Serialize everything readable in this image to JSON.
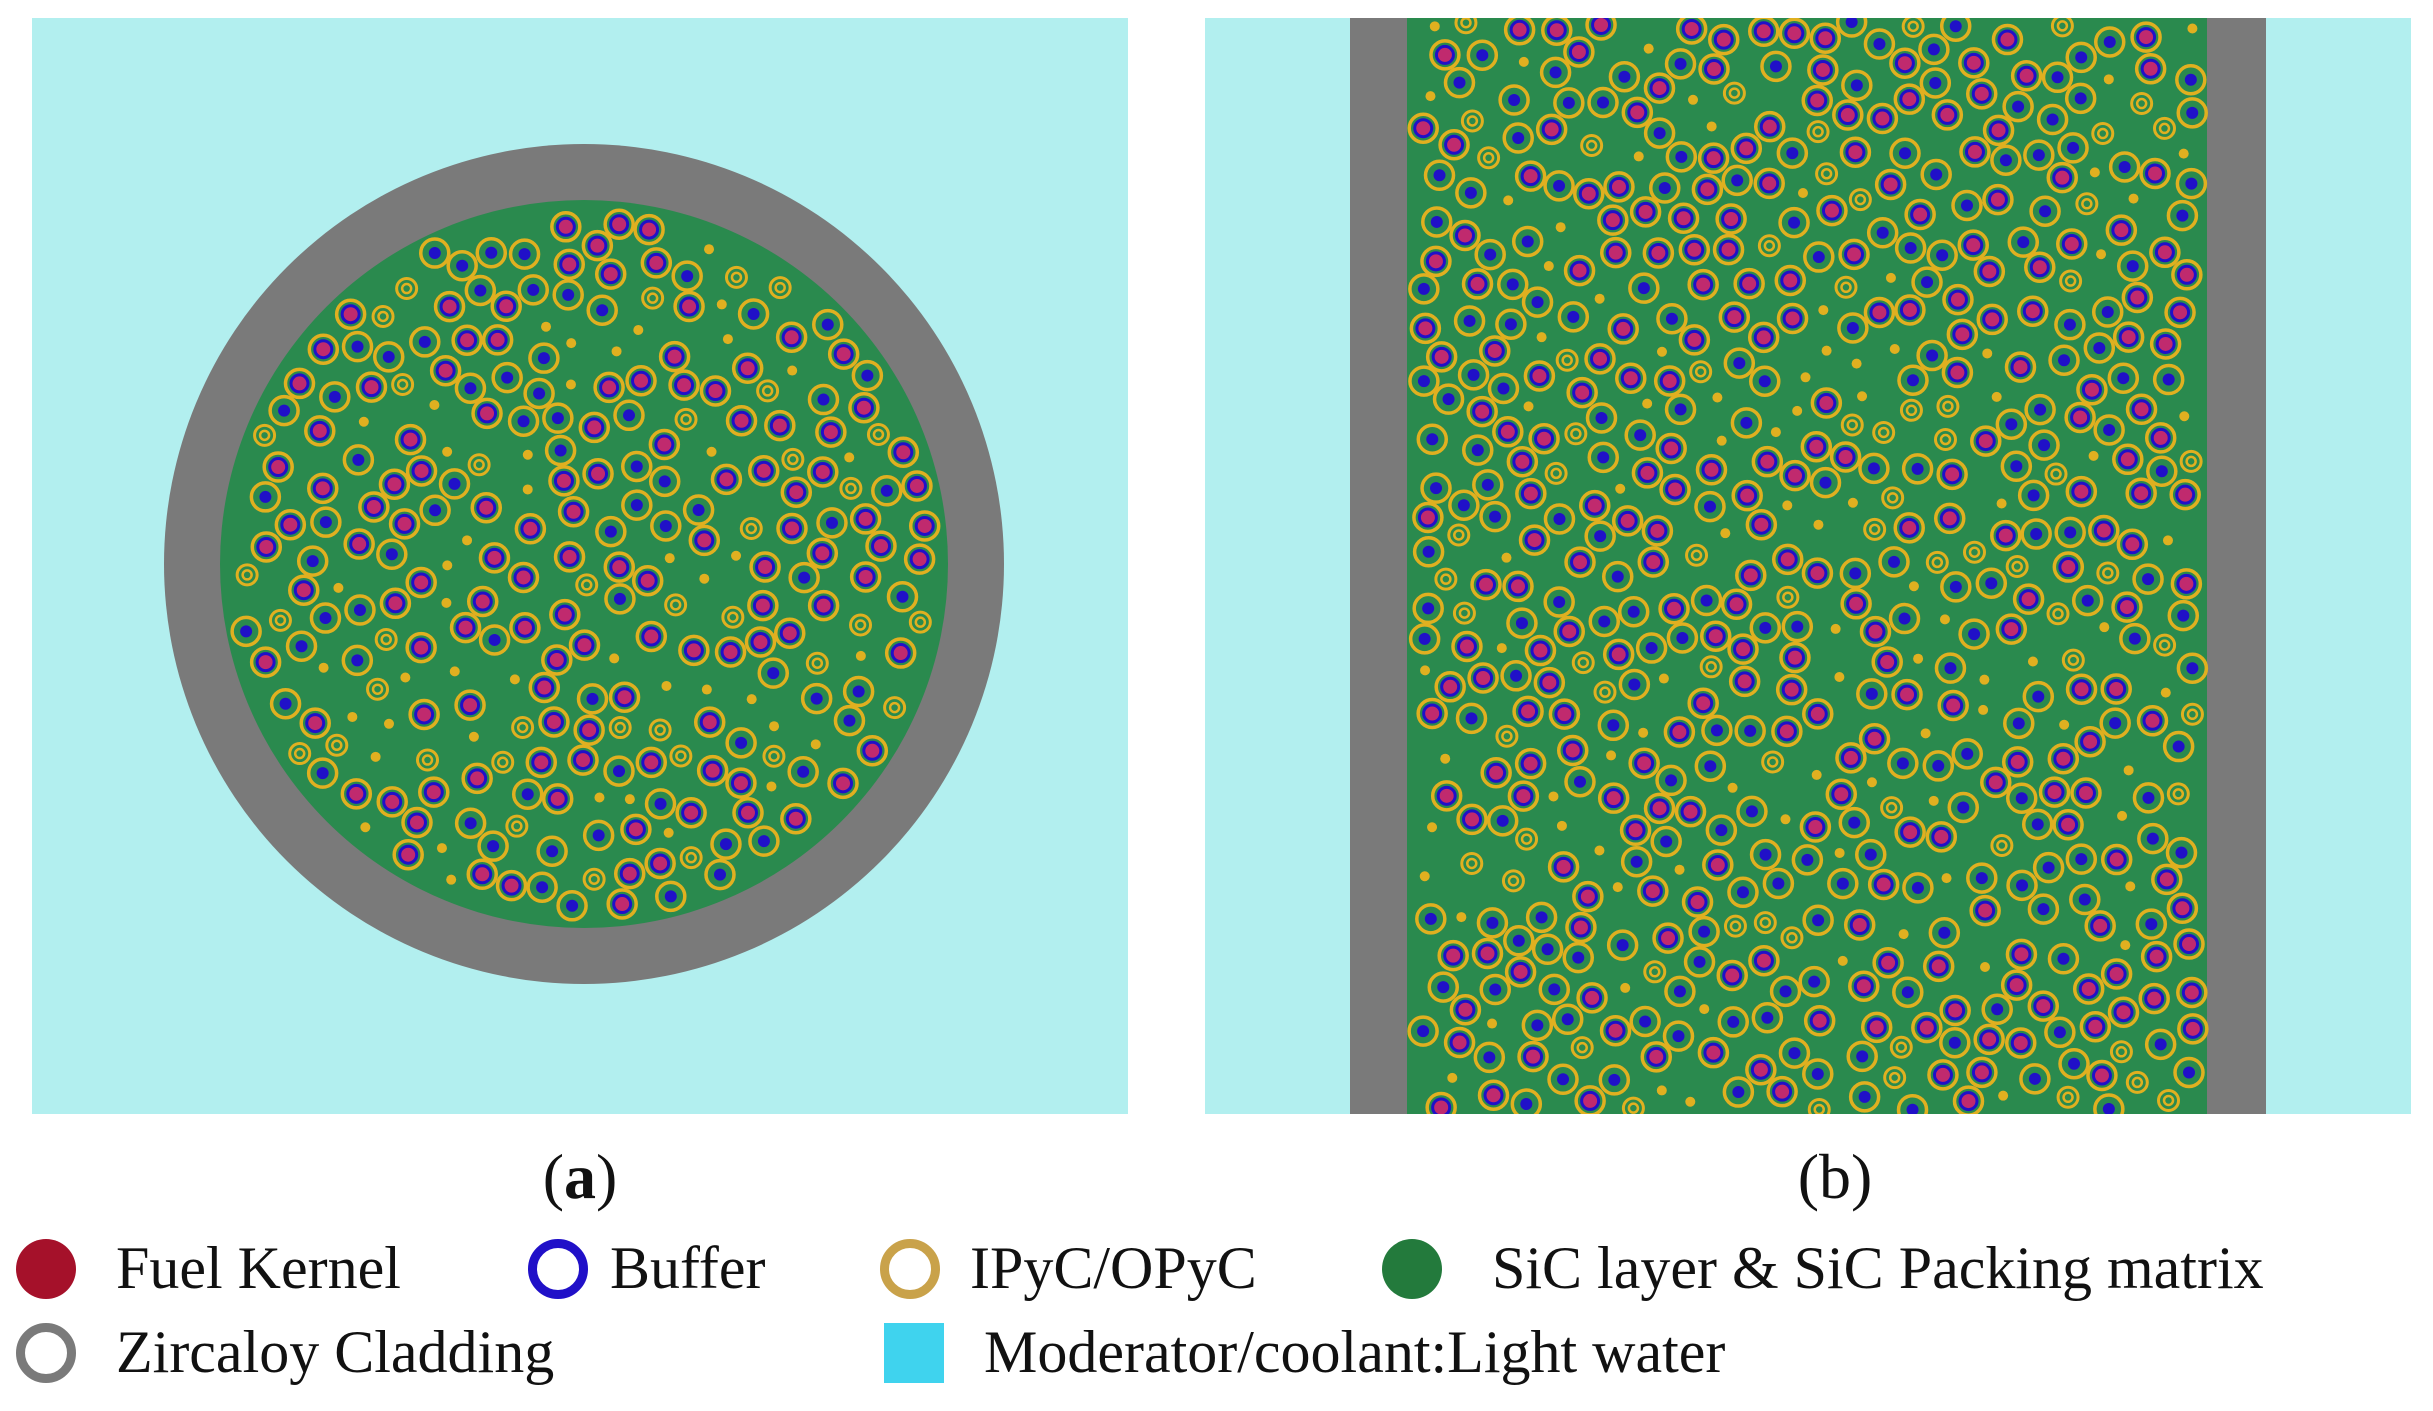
{
  "colors": {
    "moderator": "#b2efef",
    "cladding": "#7a7a7a",
    "matrix": "#2a8a4e",
    "fuel_kernel": "#c02a6e",
    "buffer": "#2010c8",
    "pyc": "#e0b020",
    "legend_fuel": "#a5112a",
    "legend_buffer": "#2010c8",
    "legend_pyc": "#c9a24a",
    "legend_sic": "#237a3c",
    "legend_cladding": "#7a7a7a",
    "legend_moderator": "#3fd3ee"
  },
  "captions": {
    "a_open": "(",
    "a_letter": "a",
    "a_close": ")",
    "b": "(b)"
  },
  "legend": {
    "fuel_kernel": "Fuel Kernel",
    "buffer": "Buffer",
    "pyc": "IPyC/OPyC",
    "sic": "SiC layer & SiC Packing matrix",
    "cladding": "Zircaloy Cladding",
    "moderator": "Moderator/coolant:Light water"
  }
}
